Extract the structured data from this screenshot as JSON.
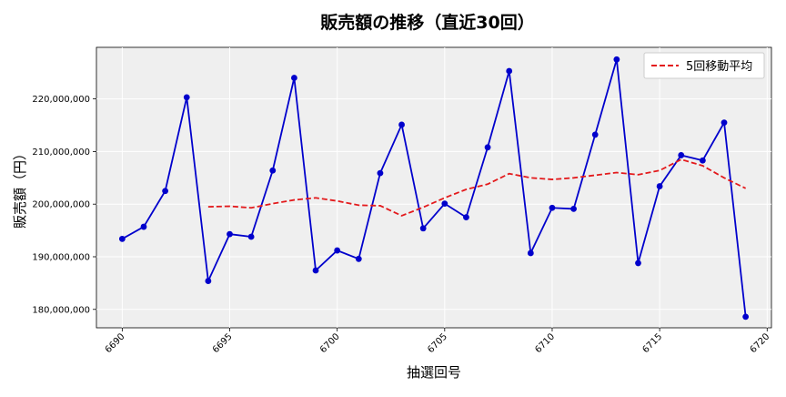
{
  "chart_data": {
    "type": "line",
    "title": "販売額の推移（直近30回）",
    "xlabel": "抽選回号",
    "ylabel": "販売額（円）",
    "xlim": [
      6688.8,
      6720.2
    ],
    "ylim": [
      176500000,
      229800000
    ],
    "x_ticks": [
      6690,
      6695,
      6700,
      6705,
      6710,
      6715,
      6720
    ],
    "y_ticks": [
      180000000,
      190000000,
      200000000,
      210000000,
      220000000
    ],
    "y_tick_labels": [
      "180,000,000",
      "190,000,000",
      "200,000,000",
      "210,000,000",
      "220,000,000"
    ],
    "grid": true,
    "legend_position": "top-right",
    "x": [
      6690,
      6691,
      6692,
      6693,
      6694,
      6695,
      6696,
      6697,
      6698,
      6699,
      6700,
      6701,
      6702,
      6703,
      6704,
      6705,
      6706,
      6707,
      6708,
      6709,
      6710,
      6711,
      6712,
      6713,
      6714,
      6715,
      6716,
      6717,
      6718,
      6719
    ],
    "series": [
      {
        "color": "#0000cc",
        "style": "solid-markers",
        "values": [
          193400000,
          195700000,
          202500000,
          220300000,
          185400000,
          194300000,
          193800000,
          206400000,
          224000000,
          187400000,
          191200000,
          189600000,
          205900000,
          215100000,
          195400000,
          200100000,
          197500000,
          210800000,
          225300000,
          190700000,
          199300000,
          199100000,
          213200000,
          227500000,
          188800000,
          203400000,
          209300000,
          208300000,
          215500000,
          178600000
        ]
      },
      {
        "name": "5回移動平均",
        "color": "#e31a1c",
        "style": "dashed",
        "x": [
          6694,
          6695,
          6696,
          6697,
          6698,
          6699,
          6700,
          6701,
          6702,
          6703,
          6704,
          6705,
          6706,
          6707,
          6708,
          6709,
          6710,
          6711,
          6712,
          6713,
          6714,
          6715,
          6716,
          6717,
          6718,
          6719
        ],
        "values": [
          199500000,
          199600000,
          199300000,
          200100000,
          200800000,
          201200000,
          200600000,
          199800000,
          199700000,
          197800000,
          199400000,
          201200000,
          202800000,
          203800000,
          205800000,
          205000000,
          204700000,
          205000000,
          205500000,
          206000000,
          205600000,
          206400000,
          208500000,
          207300000,
          205000000,
          203000000
        ]
      }
    ]
  }
}
